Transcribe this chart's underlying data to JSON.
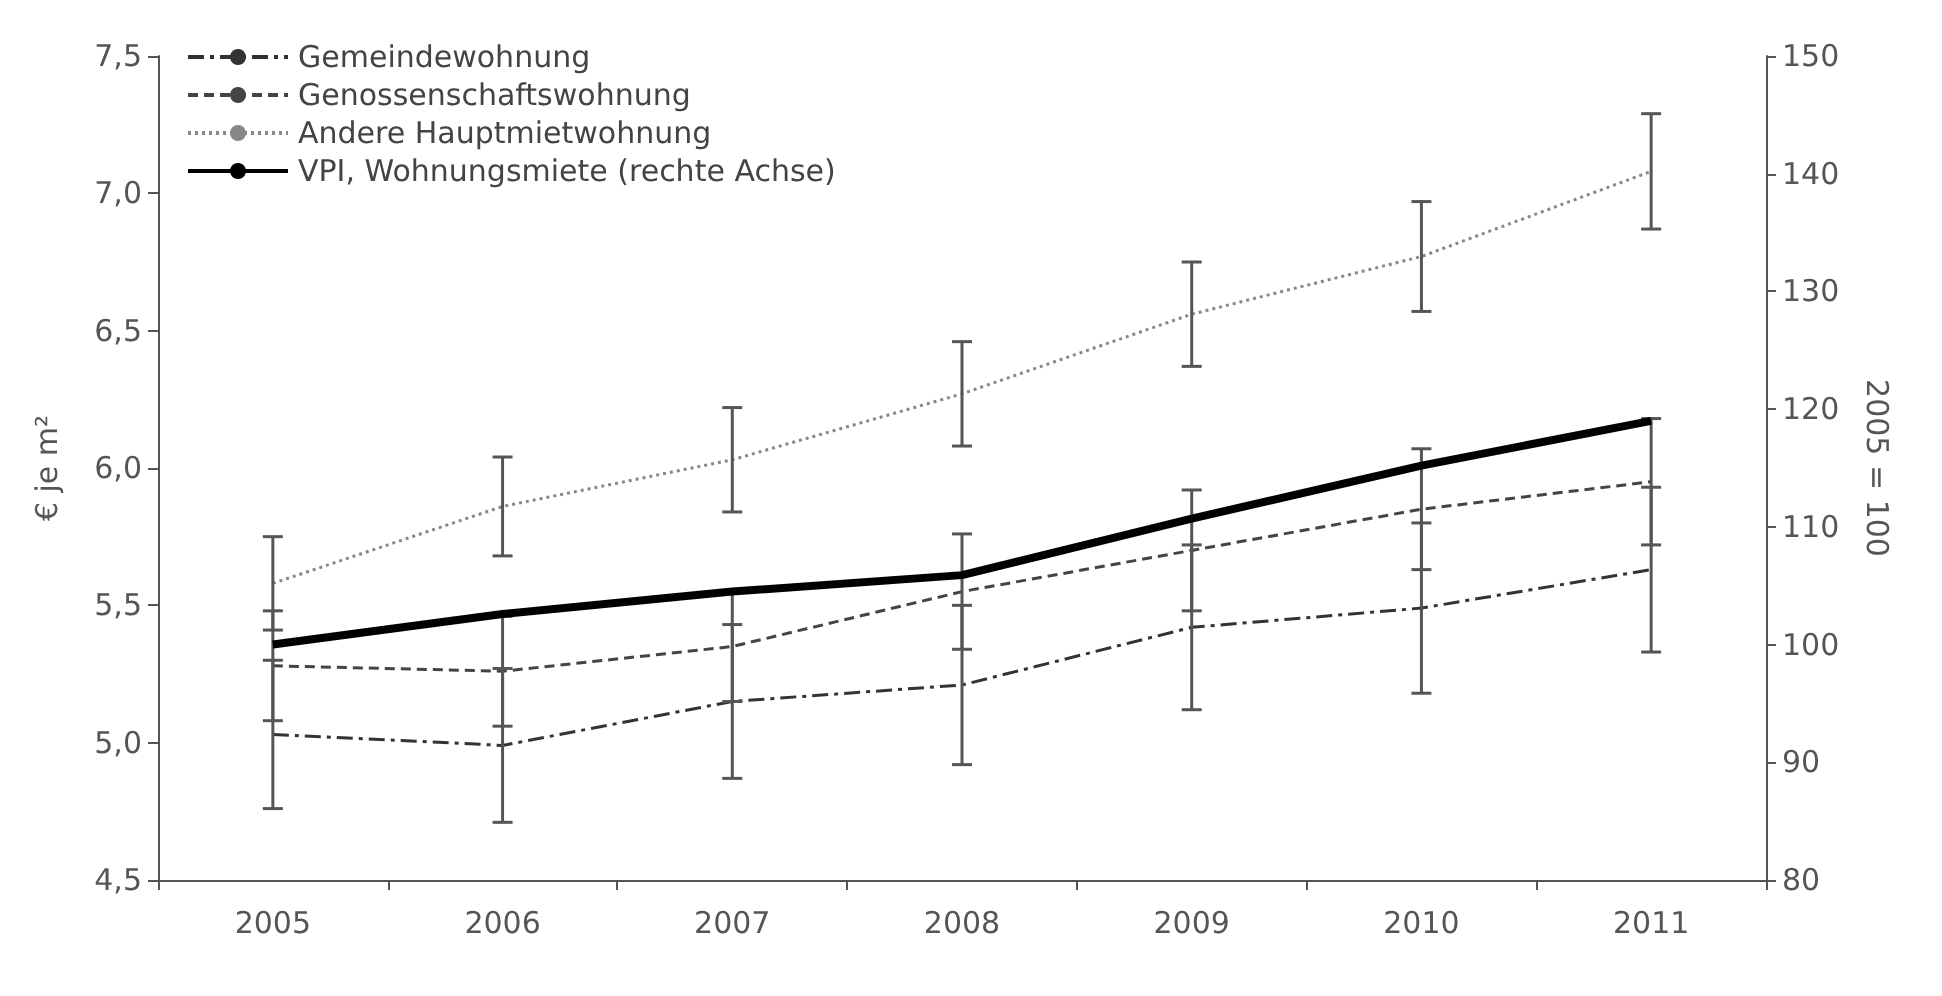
{
  "chart_data": {
    "type": "line",
    "ylabel": "€ je m²",
    "y2label": "2005 = 100",
    "categories": [
      "2005",
      "2006",
      "2007",
      "2008",
      "2009",
      "2010",
      "2011"
    ],
    "series": [
      {
        "name": "Gemeindewohnung",
        "color": "#333333",
        "line_style": "dashdot",
        "values": [
          5.03,
          4.99,
          5.15,
          5.21,
          5.42,
          5.49,
          5.63
        ],
        "errors": [
          0.27,
          0.28,
          0.28,
          0.29,
          0.3,
          0.31,
          0.3
        ]
      },
      {
        "name": "Genossenschaftswohnung",
        "color": "#444444",
        "line_style": "dashed",
        "values": [
          5.28,
          5.26,
          5.35,
          5.55,
          5.7,
          5.85,
          5.95
        ],
        "errors": [
          0.2,
          0.2,
          0.2,
          0.21,
          0.22,
          0.22,
          0.23
        ]
      },
      {
        "name": "Andere Hauptmietwohnung",
        "color": "#888888",
        "line_style": "dotted",
        "values": [
          5.58,
          5.86,
          6.03,
          6.27,
          6.56,
          6.77,
          7.08
        ],
        "errors": [
          0.17,
          0.18,
          0.19,
          0.19,
          0.19,
          0.2,
          0.21
        ]
      },
      {
        "name": "VPI, Wohnungsmiete (rechte Achse)",
        "color": "#000000",
        "line_style": "solid",
        "axis": "y2",
        "values": [
          100,
          102.6,
          104.5,
          105.9,
          110.7,
          115.2,
          119
        ]
      }
    ],
    "ylim": [
      4.5,
      7.5
    ],
    "yticks": [
      {
        "value": 4.5,
        "label": "4,5"
      },
      {
        "value": 5.0,
        "label": "5,0"
      },
      {
        "value": 5.5,
        "label": "5,5"
      },
      {
        "value": 6.0,
        "label": "6,0"
      },
      {
        "value": 6.5,
        "label": "6,5"
      },
      {
        "value": 7.0,
        "label": "7,0"
      },
      {
        "value": 7.5,
        "label": "7,5"
      }
    ],
    "y2lim": [
      80,
      150
    ],
    "y2ticks": [
      80,
      90,
      100,
      110,
      120,
      130,
      140,
      150
    ],
    "grid": false,
    "legend": "top left",
    "marker": "none"
  }
}
